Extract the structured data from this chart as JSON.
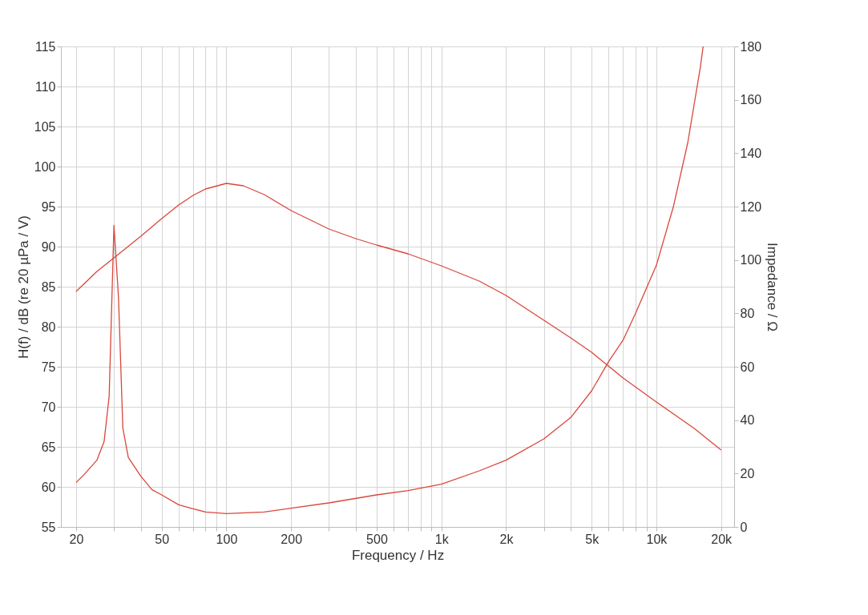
{
  "chart_data": {
    "type": "line",
    "xlabel": "Frequency / Hz",
    "ylabel": "H(f) / dB (re 20 µPa / V)",
    "y2label": "Impedance / Ω",
    "log": "x",
    "grid": true,
    "marker": "none",
    "line_style": "solid",
    "xlim": [
      17,
      23000
    ],
    "xticks": [
      20,
      {
        "value": 30,
        "label": null
      },
      {
        "value": 40,
        "label": null
      },
      50,
      {
        "value": 60,
        "label": null
      },
      {
        "value": 70,
        "label": null
      },
      {
        "value": 80,
        "label": null
      },
      {
        "value": 90,
        "label": null
      },
      100,
      200,
      {
        "value": 300,
        "label": null
      },
      {
        "value": 400,
        "label": null
      },
      500,
      {
        "value": 600,
        "label": null
      },
      {
        "value": 700,
        "label": null
      },
      {
        "value": 800,
        "label": null
      },
      {
        "value": 900,
        "label": null
      },
      {
        "value": 1000,
        "label": "1k"
      },
      {
        "value": 2000,
        "label": "2k"
      },
      {
        "value": 3000,
        "label": null
      },
      {
        "value": 4000,
        "label": null
      },
      {
        "value": 5000,
        "label": "5k"
      },
      {
        "value": 6000,
        "label": null
      },
      {
        "value": 7000,
        "label": null
      },
      {
        "value": 8000,
        "label": null
      },
      {
        "value": 9000,
        "label": null
      },
      {
        "value": 10000,
        "label": "10k"
      },
      {
        "value": 20000,
        "label": "20k"
      }
    ],
    "ylim": [
      55,
      115
    ],
    "yticks": [
      55,
      60,
      65,
      70,
      75,
      80,
      85,
      90,
      95,
      100,
      105,
      110,
      115
    ],
    "y2lim": [
      0,
      180
    ],
    "y2ticks": [
      0,
      20,
      40,
      60,
      80,
      100,
      120,
      140,
      160,
      180
    ],
    "series": [
      {
        "color": "#d9473b",
        "x": [
          20,
          25,
          30,
          40,
          50,
          60,
          70,
          80,
          100,
          120,
          150,
          200,
          300,
          400,
          500,
          700,
          1000,
          1500,
          2000,
          3000,
          4000,
          5000,
          7000,
          10000,
          15000,
          20000
        ],
        "values": [
          84.4,
          86.9,
          88.6,
          91.3,
          93.5,
          95.2,
          96.4,
          97.2,
          97.9,
          97.6,
          96.5,
          94.5,
          92.2,
          91.0,
          90.2,
          89.1,
          87.6,
          85.7,
          83.9,
          80.8,
          78.6,
          76.8,
          73.6,
          70.6,
          67.3,
          64.6
        ]
      },
      {
        "color": "#d9473b",
        "axis": "y2",
        "x": [
          20,
          22,
          25,
          27,
          28.5,
          30,
          31.5,
          33,
          35,
          40,
          45,
          50,
          60,
          70,
          80,
          100,
          150,
          200,
          300,
          500,
          700,
          1000,
          1500,
          2000,
          3000,
          4000,
          5000,
          6000,
          7000,
          8000,
          10000,
          12000,
          14000,
          16000,
          16500
        ],
        "values": [
          16.6,
          20,
          25,
          32,
          49,
          113,
          86,
          37,
          26,
          19,
          14,
          12,
          8.3,
          6.8,
          5.6,
          5.0,
          5.6,
          7,
          9,
          12,
          13.6,
          16,
          21,
          25,
          33,
          41,
          51,
          62,
          70,
          80,
          98,
          120,
          144,
          172,
          180
        ]
      }
    ]
  }
}
